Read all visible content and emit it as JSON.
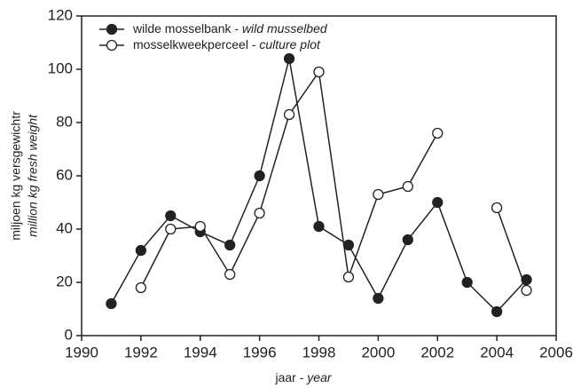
{
  "chart_data": {
    "type": "line",
    "x": [
      1991,
      1992,
      1993,
      1994,
      1995,
      1996,
      1997,
      1998,
      1999,
      2000,
      2001,
      2002,
      2003,
      2004,
      2005
    ],
    "series": [
      {
        "name": [
          "wilde mosselbank - ",
          "wild musselbed"
        ],
        "color": "#222222",
        "marker": "filled",
        "values": [
          12,
          32,
          45,
          39,
          34,
          60,
          104,
          41,
          34,
          14,
          36,
          50,
          20,
          9,
          21
        ]
      },
      {
        "name": [
          "mosselkweekperceel - ",
          "culture plot"
        ],
        "color": "#222222",
        "marker": "open",
        "values": [
          null,
          18,
          40,
          41,
          23,
          46,
          83,
          99,
          22,
          53,
          56,
          76,
          null,
          48,
          17
        ]
      }
    ],
    "x_label": [
      "jaar - ",
      "year"
    ],
    "y_label": [
      "miljoen kg versgewichtr",
      "million kg fresh weight"
    ],
    "xlim": [
      1990,
      2006
    ],
    "xticks": [
      1990,
      1992,
      1994,
      1996,
      1998,
      2000,
      2002,
      2004,
      2006
    ],
    "ylim": [
      0,
      120
    ],
    "yticks": [
      0,
      20,
      40,
      60,
      80,
      100,
      120
    ],
    "legend": "upper-left",
    "grid": false
  }
}
